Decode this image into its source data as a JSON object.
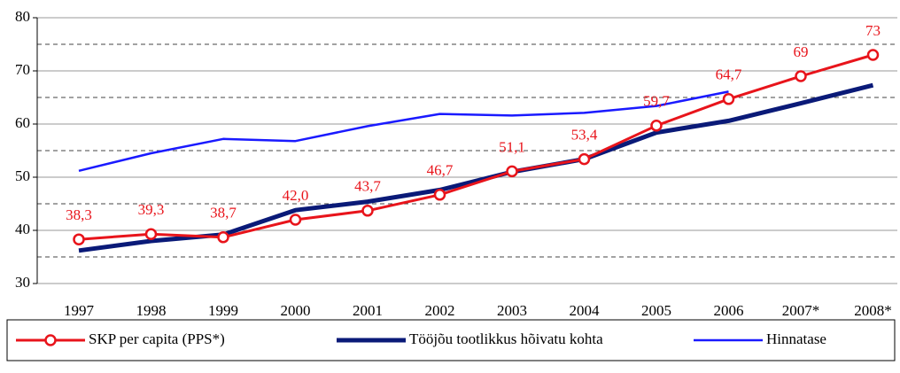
{
  "chart_data": {
    "type": "line",
    "categories": [
      "1997",
      "1998",
      "1999",
      "2000",
      "2001",
      "2002",
      "2003",
      "2004",
      "2005",
      "2006",
      "2007*",
      "2008*"
    ],
    "series": [
      {
        "name": "SKP per capita (PPS*)",
        "color": "#e8141b",
        "marker": "circle",
        "values": [
          38.3,
          39.3,
          38.7,
          42.0,
          43.7,
          46.7,
          51.1,
          53.4,
          59.7,
          64.7,
          69,
          73
        ],
        "value_labels": [
          "38,3",
          "39,3",
          "38,7",
          "42,0",
          "43,7",
          "46,7",
          "51,1",
          "53,4",
          "59,7",
          "64,7",
          "69",
          "73"
        ]
      },
      {
        "name": "Tööjõu tootlikkus hõivatu kohta",
        "color": "#0a1a78",
        "values": [
          36.2,
          38.0,
          39.2,
          43.8,
          45.4,
          47.6,
          51.0,
          53.4,
          58.4,
          60.6,
          63.9,
          67.3
        ]
      },
      {
        "name": "Hinnatase",
        "color": "#1a1aff",
        "values": [
          51.2,
          54.5,
          57.2,
          56.8,
          59.6,
          61.9,
          61.6,
          62.1,
          63.4,
          66.1,
          null,
          null
        ]
      }
    ],
    "ylim": [
      30,
      80
    ],
    "yticks": [
      30,
      40,
      50,
      60,
      70,
      80
    ],
    "minor_yticks": [
      35,
      45,
      55,
      65,
      75
    ],
    "grid": true,
    "legend": "bottom"
  }
}
